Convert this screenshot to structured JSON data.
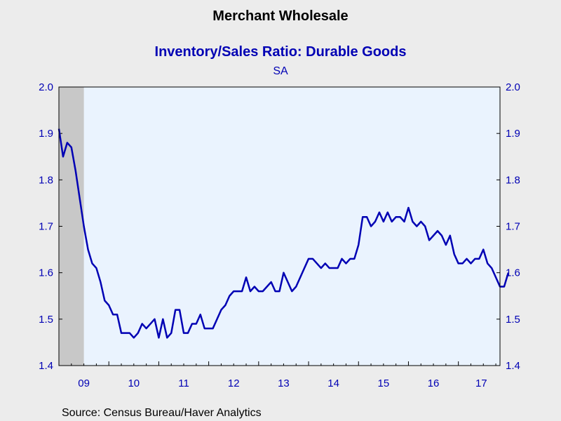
{
  "chart_data": {
    "type": "line",
    "title": "Merchant Wholesale",
    "subtitle": "Inventory/Sales Ratio: Durable Goods",
    "subtitle2": "SA",
    "source": "Source:  Census Bureau/Haver Analytics",
    "ylim": [
      1.4,
      2.0
    ],
    "yticks": [
      "1.4",
      "1.5",
      "1.6",
      "1.7",
      "1.8",
      "1.9",
      "2.0"
    ],
    "xtick_labels": [
      "09",
      "10",
      "11",
      "12",
      "13",
      "14",
      "15",
      "16",
      "17"
    ],
    "x_start": "2009-01",
    "x_end": "2017-11",
    "recession_shade": {
      "start": "2009-01",
      "end": "2009-06",
      "color": "#c8c8c8"
    },
    "grid": false,
    "colors": {
      "line": "#0000b4",
      "plot_bg": "#eaf3fe",
      "axis_text": "#0000b4",
      "title": "#000000",
      "subtitle": "#0000b4"
    },
    "series": [
      {
        "values": [
          1.91,
          1.85,
          1.88,
          1.87,
          1.82,
          1.76,
          1.7,
          1.65,
          1.62,
          1.61,
          1.58,
          1.54,
          1.53,
          1.51,
          1.51,
          1.47,
          1.47,
          1.47,
          1.46,
          1.47,
          1.49,
          1.48,
          1.49,
          1.5,
          1.46,
          1.5,
          1.46,
          1.47,
          1.52,
          1.52,
          1.47,
          1.47,
          1.49,
          1.49,
          1.51,
          1.48,
          1.48,
          1.48,
          1.5,
          1.52,
          1.53,
          1.55,
          1.56,
          1.56,
          1.56,
          1.59,
          1.56,
          1.57,
          1.56,
          1.56,
          1.57,
          1.58,
          1.56,
          1.56,
          1.6,
          1.58,
          1.56,
          1.57,
          1.59,
          1.61,
          1.63,
          1.63,
          1.62,
          1.61,
          1.62,
          1.61,
          1.61,
          1.61,
          1.63,
          1.62,
          1.63,
          1.63,
          1.66,
          1.72,
          1.72,
          1.7,
          1.71,
          1.73,
          1.71,
          1.73,
          1.71,
          1.72,
          1.72,
          1.71,
          1.74,
          1.71,
          1.7,
          1.71,
          1.7,
          1.67,
          1.68,
          1.69,
          1.68,
          1.66,
          1.68,
          1.64,
          1.62,
          1.62,
          1.63,
          1.62,
          1.63,
          1.63,
          1.65,
          1.62,
          1.61,
          1.59,
          1.57,
          1.57,
          1.6
        ]
      }
    ]
  }
}
